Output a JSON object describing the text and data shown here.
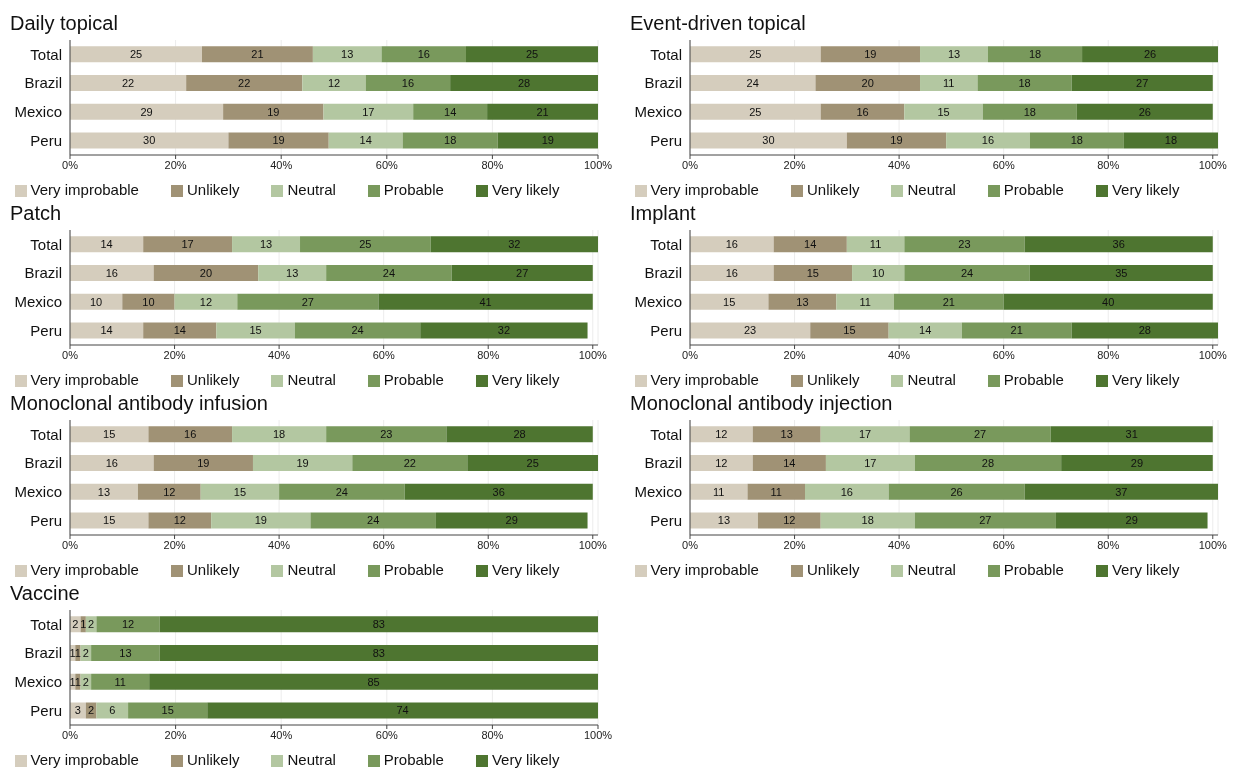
{
  "chart_data": [
    {
      "type": "bar",
      "orientation": "horizontal",
      "stacked": true,
      "title": "Daily topical",
      "categories": [
        "Total",
        "Brazil",
        "Mexico",
        "Peru"
      ],
      "xlim": [
        0,
        100
      ],
      "xticks": [
        {
          "value": 0,
          "label": "0%"
        },
        {
          "value": 20,
          "label": "20%"
        },
        {
          "value": 40,
          "label": "40%"
        },
        {
          "value": 60,
          "label": "60%"
        },
        {
          "value": 80,
          "label": "80%"
        },
        {
          "value": 100,
          "label": "100%"
        }
      ],
      "grid": "x",
      "legend": "bottom",
      "data_labels": true,
      "series": [
        {
          "name": "Very improbable",
          "color": "#d5cdbd",
          "values": [
            25,
            22,
            29,
            30
          ]
        },
        {
          "name": "Unlikely",
          "color": "#a09275",
          "values": [
            21,
            22,
            19,
            19
          ]
        },
        {
          "name": "Neutral",
          "color": "#b3c7a1",
          "values": [
            13,
            12,
            17,
            14
          ]
        },
        {
          "name": "Probable",
          "color": "#79995c",
          "values": [
            16,
            16,
            14,
            18
          ]
        },
        {
          "name": "Very likely",
          "color": "#4e7530",
          "values": [
            25,
            28,
            21,
            19
          ]
        }
      ]
    },
    {
      "type": "bar",
      "orientation": "horizontal",
      "stacked": true,
      "title": "Event-driven topical",
      "categories": [
        "Total",
        "Brazil",
        "Mexico",
        "Peru"
      ],
      "xlim": [
        0,
        101
      ],
      "xticks": [
        {
          "value": 0,
          "label": "0%"
        },
        {
          "value": 20,
          "label": "20%"
        },
        {
          "value": 40,
          "label": "40%"
        },
        {
          "value": 60,
          "label": "60%"
        },
        {
          "value": 80,
          "label": "80%"
        },
        {
          "value": 100,
          "label": "100%"
        }
      ],
      "grid": "x",
      "legend": "bottom",
      "data_labels": true,
      "series": [
        {
          "name": "Very improbable",
          "color": "#d5cdbd",
          "values": [
            25,
            24,
            25,
            30
          ]
        },
        {
          "name": "Unlikely",
          "color": "#a09275",
          "values": [
            19,
            20,
            16,
            19
          ]
        },
        {
          "name": "Neutral",
          "color": "#b3c7a1",
          "values": [
            13,
            11,
            15,
            16
          ]
        },
        {
          "name": "Probable",
          "color": "#79995c",
          "values": [
            18,
            18,
            18,
            18
          ]
        },
        {
          "name": "Very likely",
          "color": "#4e7530",
          "values": [
            26,
            27,
            26,
            18
          ]
        }
      ]
    },
    {
      "type": "bar",
      "orientation": "horizontal",
      "stacked": true,
      "title": "Patch",
      "categories": [
        "Total",
        "Brazil",
        "Mexico",
        "Peru"
      ],
      "xlim": [
        0,
        101
      ],
      "xticks": [
        {
          "value": 0,
          "label": "0%"
        },
        {
          "value": 20,
          "label": "20%"
        },
        {
          "value": 40,
          "label": "40%"
        },
        {
          "value": 60,
          "label": "60%"
        },
        {
          "value": 80,
          "label": "80%"
        },
        {
          "value": 100,
          "label": "100%"
        }
      ],
      "grid": "x",
      "legend": "bottom",
      "data_labels": true,
      "series": [
        {
          "name": "Very improbable",
          "color": "#d5cdbd",
          "values": [
            14,
            16,
            10,
            14
          ]
        },
        {
          "name": "Unlikely",
          "color": "#a09275",
          "values": [
            17,
            20,
            10,
            14
          ]
        },
        {
          "name": "Neutral",
          "color": "#b3c7a1",
          "values": [
            13,
            13,
            12,
            15
          ]
        },
        {
          "name": "Probable",
          "color": "#79995c",
          "values": [
            25,
            24,
            27,
            24
          ]
        },
        {
          "name": "Very likely",
          "color": "#4e7530",
          "values": [
            32,
            27,
            41,
            32
          ]
        }
      ]
    },
    {
      "type": "bar",
      "orientation": "horizontal",
      "stacked": true,
      "title": "Implant",
      "categories": [
        "Total",
        "Brazil",
        "Mexico",
        "Peru"
      ],
      "xlim": [
        0,
        101
      ],
      "xticks": [
        {
          "value": 0,
          "label": "0%"
        },
        {
          "value": 20,
          "label": "20%"
        },
        {
          "value": 40,
          "label": "40%"
        },
        {
          "value": 60,
          "label": "60%"
        },
        {
          "value": 80,
          "label": "80%"
        },
        {
          "value": 100,
          "label": "100%"
        }
      ],
      "grid": "x",
      "legend": "bottom",
      "data_labels": true,
      "series": [
        {
          "name": "Very improbable",
          "color": "#d5cdbd",
          "values": [
            16,
            16,
            15,
            23
          ]
        },
        {
          "name": "Unlikely",
          "color": "#a09275",
          "values": [
            14,
            15,
            13,
            15
          ]
        },
        {
          "name": "Neutral",
          "color": "#b3c7a1",
          "values": [
            11,
            10,
            11,
            14
          ]
        },
        {
          "name": "Probable",
          "color": "#79995c",
          "values": [
            23,
            24,
            21,
            21
          ]
        },
        {
          "name": "Very likely",
          "color": "#4e7530",
          "values": [
            36,
            35,
            40,
            28
          ]
        }
      ]
    },
    {
      "type": "bar",
      "orientation": "horizontal",
      "stacked": true,
      "title": "Monoclonal antibody infusion",
      "categories": [
        "Total",
        "Brazil",
        "Mexico",
        "Peru"
      ],
      "xlim": [
        0,
        101
      ],
      "xticks": [
        {
          "value": 0,
          "label": "0%"
        },
        {
          "value": 20,
          "label": "20%"
        },
        {
          "value": 40,
          "label": "40%"
        },
        {
          "value": 60,
          "label": "60%"
        },
        {
          "value": 80,
          "label": "80%"
        },
        {
          "value": 100,
          "label": "100%"
        }
      ],
      "grid": "x",
      "legend": "bottom",
      "data_labels": true,
      "series": [
        {
          "name": "Very improbable",
          "color": "#d5cdbd",
          "values": [
            15,
            16,
            13,
            15
          ]
        },
        {
          "name": "Unlikely",
          "color": "#a09275",
          "values": [
            16,
            19,
            12,
            12
          ]
        },
        {
          "name": "Neutral",
          "color": "#b3c7a1",
          "values": [
            18,
            19,
            15,
            19
          ]
        },
        {
          "name": "Probable",
          "color": "#79995c",
          "values": [
            23,
            22,
            24,
            24
          ]
        },
        {
          "name": "Very likely",
          "color": "#4e7530",
          "values": [
            28,
            25,
            36,
            29
          ]
        }
      ]
    },
    {
      "type": "bar",
      "orientation": "horizontal",
      "stacked": true,
      "title": "Monoclonal antibody injection",
      "categories": [
        "Total",
        "Brazil",
        "Mexico",
        "Peru"
      ],
      "xlim": [
        0,
        101
      ],
      "xticks": [
        {
          "value": 0,
          "label": "0%"
        },
        {
          "value": 20,
          "label": "20%"
        },
        {
          "value": 40,
          "label": "40%"
        },
        {
          "value": 60,
          "label": "60%"
        },
        {
          "value": 80,
          "label": "80%"
        },
        {
          "value": 100,
          "label": "100%"
        }
      ],
      "grid": "x",
      "legend": "bottom",
      "data_labels": true,
      "series": [
        {
          "name": "Very improbable",
          "color": "#d5cdbd",
          "values": [
            12,
            12,
            11,
            13
          ]
        },
        {
          "name": "Unlikely",
          "color": "#a09275",
          "values": [
            13,
            14,
            11,
            12
          ]
        },
        {
          "name": "Neutral",
          "color": "#b3c7a1",
          "values": [
            17,
            17,
            16,
            18
          ]
        },
        {
          "name": "Probable",
          "color": "#79995c",
          "values": [
            27,
            28,
            26,
            27
          ]
        },
        {
          "name": "Very likely",
          "color": "#4e7530",
          "values": [
            31,
            29,
            37,
            29
          ]
        }
      ]
    },
    {
      "type": "bar",
      "orientation": "horizontal",
      "stacked": true,
      "title": "Vaccine",
      "categories": [
        "Total",
        "Brazil",
        "Mexico",
        "Peru"
      ],
      "xlim": [
        0,
        100
      ],
      "xticks": [
        {
          "value": 0,
          "label": "0%"
        },
        {
          "value": 20,
          "label": "20%"
        },
        {
          "value": 40,
          "label": "40%"
        },
        {
          "value": 60,
          "label": "60%"
        },
        {
          "value": 80,
          "label": "80%"
        },
        {
          "value": 100,
          "label": "100%"
        }
      ],
      "grid": "x",
      "legend": "bottom",
      "data_labels": true,
      "series": [
        {
          "name": "Very improbable",
          "color": "#d5cdbd",
          "values": [
            2,
            1,
            1,
            3
          ]
        },
        {
          "name": "Unlikely",
          "color": "#a09275",
          "values": [
            1,
            1,
            1,
            2
          ]
        },
        {
          "name": "Neutral",
          "color": "#b3c7a1",
          "values": [
            2,
            2,
            2,
            6
          ]
        },
        {
          "name": "Probable",
          "color": "#79995c",
          "values": [
            12,
            13,
            11,
            15
          ]
        },
        {
          "name": "Very likely",
          "color": "#4e7530",
          "values": [
            83,
            83,
            85,
            74
          ]
        }
      ]
    }
  ]
}
